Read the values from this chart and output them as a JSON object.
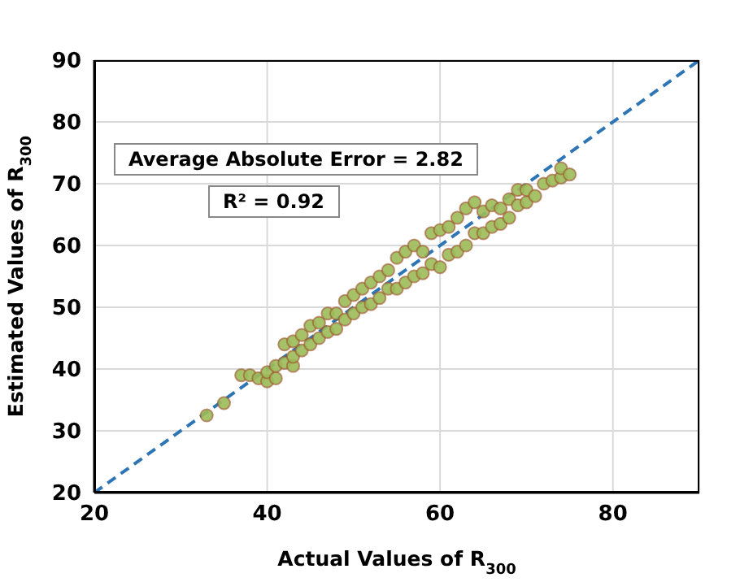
{
  "chart_data": {
    "type": "scatter",
    "xlabel": "Actual Values of R$_{300}$",
    "ylabel": "Estimated Values of R$_{300}$",
    "xlim": [
      20,
      90
    ],
    "ylim": [
      20,
      90
    ],
    "xticks": [
      20,
      40,
      60,
      80
    ],
    "yticks": [
      20,
      30,
      40,
      50,
      60,
      70,
      80,
      90
    ],
    "grid": true,
    "marker": "circle",
    "annotations": [
      "Average Absolute Error = 2.82",
      "R² = 0.92"
    ],
    "series": [
      {
        "color": "#9bbb59",
        "x": [
          33,
          35,
          37,
          38,
          39,
          40,
          40,
          41,
          41,
          42,
          42,
          43,
          43,
          43,
          44,
          44,
          45,
          45,
          46,
          46,
          47,
          47,
          48,
          48,
          49,
          49,
          50,
          50,
          51,
          51,
          52,
          52,
          53,
          53,
          54,
          54,
          55,
          55,
          56,
          56,
          57,
          57,
          58,
          58,
          59,
          59,
          60,
          60,
          61,
          61,
          62,
          62,
          63,
          63,
          64,
          64,
          65,
          65,
          66,
          66,
          67,
          67,
          68,
          68,
          69,
          69,
          70,
          70,
          71,
          72,
          73,
          74,
          74,
          75
        ],
        "values": [
          32.5,
          34.5,
          39,
          39,
          38.5,
          38,
          39.5,
          38.5,
          40.5,
          41,
          44,
          40.5,
          42,
          44.5,
          43,
          45.5,
          44,
          47,
          45,
          47.5,
          46,
          49,
          46.5,
          49,
          48,
          51,
          49,
          52,
          50,
          53,
          50.5,
          54,
          51.5,
          55,
          53,
          56,
          53,
          58,
          54,
          59,
          55,
          60,
          55.5,
          59,
          57,
          62,
          56.5,
          62.5,
          58.5,
          63,
          59,
          64.5,
          60,
          66,
          62,
          67,
          62,
          65.5,
          63,
          66.5,
          63.5,
          66,
          64.5,
          67.5,
          66.5,
          69,
          67,
          69,
          68,
          70,
          70.5,
          71,
          72.5,
          71.5
        ]
      },
      {
        "type": "line",
        "color": "#2e75b6",
        "line_style": "dashed",
        "marker": "none",
        "x": [
          20,
          90
        ],
        "values": [
          20,
          90
        ]
      }
    ]
  }
}
